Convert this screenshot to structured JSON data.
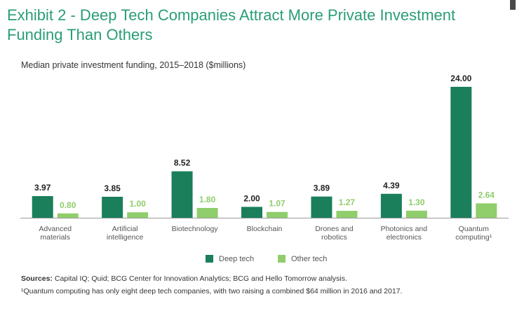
{
  "header": {
    "title": "Exhibit 2 - Deep Tech Companies Attract More Private Investment Funding Than Others",
    "subtitle": "Median private investment funding, 2015–2018 ($millions)"
  },
  "colors": {
    "deep_tech": "#1a7f5a",
    "other_tech": "#8fce6b",
    "title": "#2a9d78"
  },
  "chart_data": {
    "type": "bar",
    "categories": [
      [
        "Advanced",
        "materials"
      ],
      [
        "Artificial",
        "intelligence"
      ],
      [
        "Biotechnology"
      ],
      [
        "Blockchain"
      ],
      [
        "Drones and",
        "robotics"
      ],
      [
        "Photonics and",
        "electronics"
      ],
      [
        "Quantum",
        "computing¹"
      ]
    ],
    "series": [
      {
        "name": "Deep tech",
        "values": [
          3.97,
          3.85,
          8.52,
          2.0,
          3.89,
          4.39,
          24.0
        ],
        "labels": [
          "3.97",
          "3.85",
          "8.52",
          "2.00",
          "3.89",
          "4.39",
          "24.00"
        ]
      },
      {
        "name": "Other tech",
        "values": [
          0.8,
          1.0,
          1.8,
          1.07,
          1.27,
          1.3,
          2.64
        ],
        "labels": [
          "0.80",
          "1.00",
          "1.80",
          "1.07",
          "1.27",
          "1.30",
          "2.64"
        ]
      }
    ],
    "ylim": [
      0,
      24
    ],
    "grid": false,
    "legend": "bottom-center"
  },
  "sources": {
    "label": "Sources:",
    "text": " Capital IQ; Quid; BCG Center for Innovation Analytics; BCG and Hello Tomorrow analysis."
  },
  "footnote": "¹Quantum computing has only eight deep tech companies, with two raising a combined $64 million in 2016 and 2017."
}
